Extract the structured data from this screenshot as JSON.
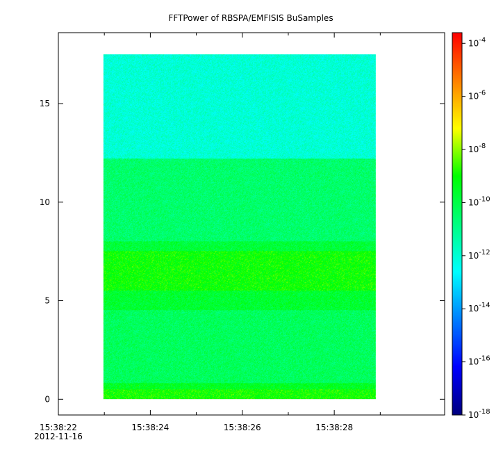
{
  "chart_data": {
    "type": "heatmap",
    "title": "FFTPower of RBSPA/EMFISIS  BuSamples",
    "xlabel": "",
    "ylabel": "",
    "x_ticks": [
      {
        "label": "15:38:22",
        "sublabel": "2012-11-16",
        "value": 22
      },
      {
        "label": "15:38:24",
        "sublabel": "",
        "value": 24
      },
      {
        "label": "15:38:26",
        "sublabel": "",
        "value": 26
      },
      {
        "label": "15:38:28",
        "sublabel": "",
        "value": 28
      }
    ],
    "x_minor_ticks": [
      23,
      25,
      27,
      29
    ],
    "xlim": [
      22,
      30.4
    ],
    "y_ticks": [
      {
        "label": "0",
        "value": 0
      },
      {
        "label": "5",
        "value": 5
      },
      {
        "label": "10",
        "value": 10
      },
      {
        "label": "15",
        "value": 15
      }
    ],
    "ylim": [
      -0.8,
      18.6
    ],
    "data_extent": {
      "x": [
        22.98,
        28.9
      ],
      "y": [
        0,
        17.5
      ]
    },
    "bands": [
      {
        "y": [
          0,
          0.5
        ],
        "log_power": -8.9
      },
      {
        "y": [
          0.5,
          0.8
        ],
        "log_power": -9.5
      },
      {
        "y": [
          0.8,
          4.5
        ],
        "log_power": -10.3
      },
      {
        "y": [
          4.5,
          5.5
        ],
        "log_power": -9.7
      },
      {
        "y": [
          5.5,
          7.5
        ],
        "log_power": -9.0
      },
      {
        "y": [
          7.5,
          8.0
        ],
        "log_power": -9.8
      },
      {
        "y": [
          8.0,
          12.2
        ],
        "log_power": -10.5
      },
      {
        "y": [
          12.2,
          17.5
        ],
        "log_power": -12.0
      }
    ],
    "colorbar": {
      "scale": "log",
      "range": [
        -18,
        -3.6
      ],
      "ticks": [
        {
          "base": "10",
          "exp": "-4",
          "value": -4
        },
        {
          "base": "10",
          "exp": "-6",
          "value": -6
        },
        {
          "base": "10",
          "exp": "-8",
          "value": -8
        },
        {
          "base": "10",
          "exp": "-10",
          "value": -10
        },
        {
          "base": "10",
          "exp": "-12",
          "value": -12
        },
        {
          "base": "10",
          "exp": "-14",
          "value": -14
        },
        {
          "base": "10",
          "exp": "-16",
          "value": -16
        },
        {
          "base": "10",
          "exp": "-18",
          "value": -18
        }
      ],
      "colormap": [
        "#00007f",
        "#0000ff",
        "#007fff",
        "#00ffff",
        "#00ff80",
        "#00ff00",
        "#ffff00",
        "#ff8000",
        "#ff0000"
      ]
    },
    "grid": false,
    "legend": "colorbar-right"
  }
}
